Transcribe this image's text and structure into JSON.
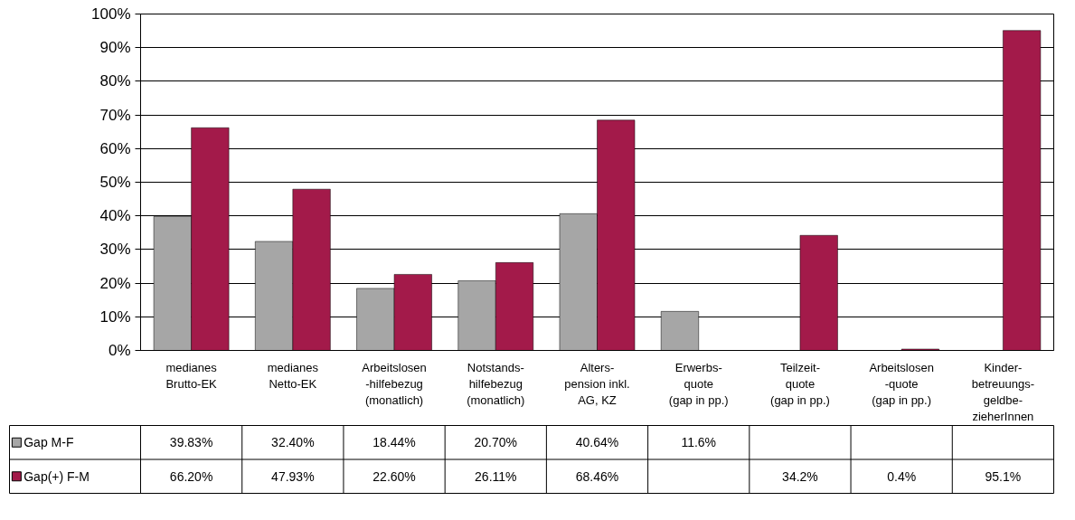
{
  "chart_data": {
    "type": "bar",
    "categories": [
      "medianes\nBrutto-EK",
      "medianes\nNetto-EK",
      "Arbeitslosen\n-hilfebezug\n(monatlich)",
      "Notstands-\nhilfebezug\n(monatlich)",
      "Alters-\npension inkl.\nAG, KZ",
      "Erwerbs-\nquote\n(gap in pp.)",
      "Teilzeit-\nquote\n(gap in pp.)",
      "Arbeitslosen\n-quote\n(gap in pp.)",
      "Kinder-\nbetreuungs-\ngeldbe-\nzieherInnen"
    ],
    "series": [
      {
        "name": "Gap M-F",
        "color": "#a6a6a6",
        "values": [
          39.83,
          32.4,
          18.44,
          20.7,
          40.64,
          11.6,
          null,
          null,
          null
        ],
        "value_labels": [
          "39.83%",
          "32.40%",
          "18.44%",
          "20.70%",
          "40.64%",
          "11.6%",
          null,
          null,
          null
        ]
      },
      {
        "name": "Gap(+) F-M",
        "color": "#a31a4a",
        "values": [
          66.2,
          47.93,
          22.6,
          26.11,
          68.46,
          null,
          34.2,
          0.4,
          95.1
        ],
        "value_labels": [
          "66.20%",
          "47.93%",
          "22.60%",
          "26.11%",
          "68.46%",
          null,
          "34.2%",
          "0.4%",
          "95.1%"
        ]
      }
    ],
    "ylim": [
      0,
      100
    ],
    "yticks": [
      {
        "value": 0,
        "label": "0%"
      },
      {
        "value": 10,
        "label": "10%"
      },
      {
        "value": 20,
        "label": "20%"
      },
      {
        "value": 30,
        "label": "30%"
      },
      {
        "value": 40,
        "label": "40%"
      },
      {
        "value": 50,
        "label": "50%"
      },
      {
        "value": 60,
        "label": "60%"
      },
      {
        "value": 70,
        "label": "70%"
      },
      {
        "value": 80,
        "label": "80%"
      },
      {
        "value": 90,
        "label": "90%"
      },
      {
        "value": 100,
        "label": "100%"
      }
    ],
    "grid": "y",
    "legend": "bottom"
  }
}
